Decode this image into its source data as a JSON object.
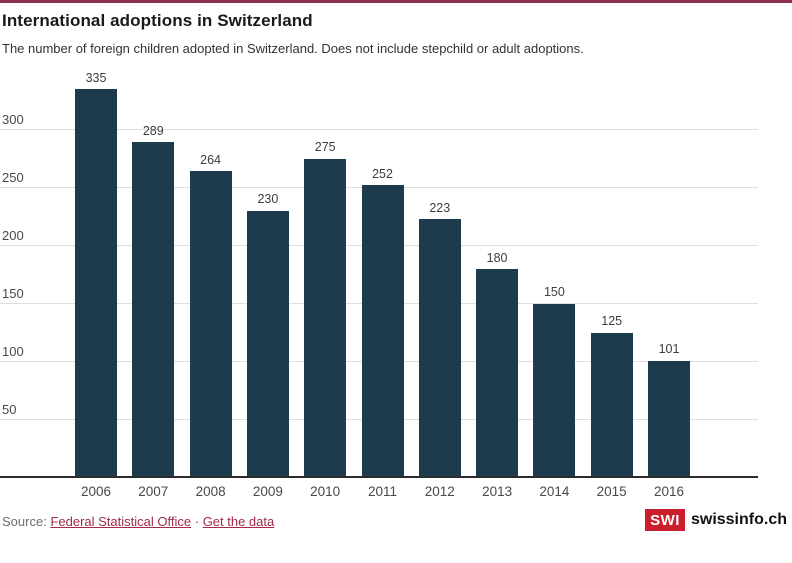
{
  "header": {
    "title": "International adoptions in Switzerland",
    "subtitle": "The number of foreign children adopted in Switzerland. Does not include stepchild or adult adoptions."
  },
  "chart_data": {
    "type": "bar",
    "title": "International adoptions in Switzerland",
    "categories": [
      "2006",
      "2007",
      "2008",
      "2009",
      "2010",
      "2011",
      "2012",
      "2013",
      "2014",
      "2015",
      "2016"
    ],
    "values": [
      335,
      289,
      264,
      230,
      275,
      252,
      223,
      180,
      150,
      125,
      101
    ],
    "xlabel": "",
    "ylabel": "",
    "ylim": [
      0,
      350
    ],
    "yticks": [
      50,
      100,
      150,
      200,
      250,
      300
    ],
    "grid": true,
    "legend_position": "none",
    "value_labels_shown": true
  },
  "footer": {
    "source_label": "Source:",
    "source_link": "Federal Statistical Office",
    "separator": "·",
    "data_link": "Get the data"
  },
  "logo": {
    "abbr": "SWI",
    "name": "swissinfo.ch"
  },
  "colors": {
    "accent": "#8d3153",
    "bar": "#1c3c4e",
    "link": "#a22c47",
    "logo_red": "#cc1f2d",
    "gridline": "#dedede",
    "axis": "#2b2b2b",
    "tick_text": "#494949",
    "value_text": "#3d3d3d"
  }
}
